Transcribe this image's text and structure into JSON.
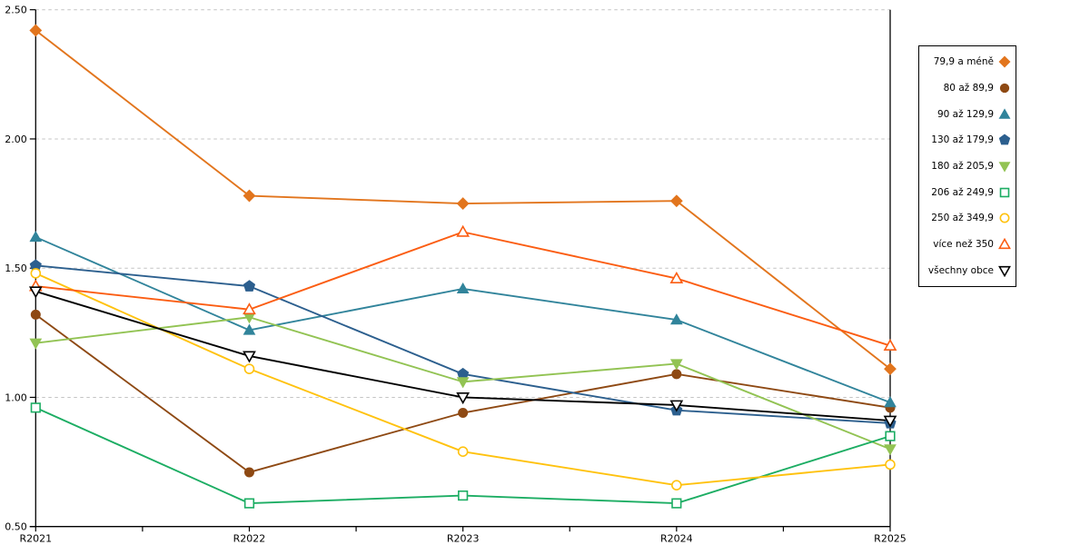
{
  "chart_data": {
    "type": "line",
    "categories": [
      "R2021",
      "R2022",
      "R2023",
      "R2024",
      "R2025"
    ],
    "ylim": [
      0.5,
      2.5
    ],
    "y_ticks": [
      0.5,
      1.0,
      1.5,
      2.0,
      2.5
    ],
    "y_tick_labels": [
      "0.50",
      "1.00",
      "1.50",
      "2.00",
      "2.50"
    ],
    "grid": "horizontal-dashed",
    "grid_color": "#c4c4c4",
    "axis_color": "#000000",
    "legend_position": "right",
    "series": [
      {
        "name": "79,9 a méně",
        "marker": "diamond",
        "filled": true,
        "color": "#e2751d",
        "values": [
          2.42,
          1.78,
          1.75,
          1.76,
          1.11
        ]
      },
      {
        "name": "80 až 89,9",
        "marker": "circle",
        "filled": true,
        "color": "#8e4913",
        "values": [
          1.32,
          0.71,
          0.94,
          1.09,
          0.96
        ]
      },
      {
        "name": "90 až 129,9",
        "marker": "triangle-up",
        "filled": true,
        "color": "#31849b",
        "values": [
          1.62,
          1.26,
          1.42,
          1.3,
          0.98
        ]
      },
      {
        "name": "130 až 179,9",
        "marker": "pentagon",
        "filled": true,
        "color": "#2c5f8e",
        "values": [
          1.51,
          1.43,
          1.09,
          0.95,
          0.9
        ]
      },
      {
        "name": "180 až 205,9",
        "marker": "triangle-down",
        "filled": true,
        "color": "#92c353",
        "values": [
          1.21,
          1.31,
          1.06,
          1.13,
          0.8
        ]
      },
      {
        "name": "206 až 249,9",
        "marker": "square",
        "filled": false,
        "color": "#1cad63",
        "values": [
          0.96,
          0.59,
          0.62,
          0.59,
          0.85
        ]
      },
      {
        "name": "250 až 349,9",
        "marker": "circle",
        "filled": false,
        "color": "#ffc20e",
        "values": [
          1.48,
          1.11,
          0.79,
          0.66,
          0.74
        ]
      },
      {
        "name": "více než 350",
        "marker": "triangle-up",
        "filled": false,
        "color": "#fb5d12",
        "values": [
          1.43,
          1.34,
          1.64,
          1.46,
          1.2
        ]
      },
      {
        "name": "všechny obce",
        "marker": "triangle-down",
        "filled": false,
        "color": "#000000",
        "values": [
          1.41,
          1.16,
          1.0,
          0.97,
          0.91
        ]
      }
    ]
  }
}
